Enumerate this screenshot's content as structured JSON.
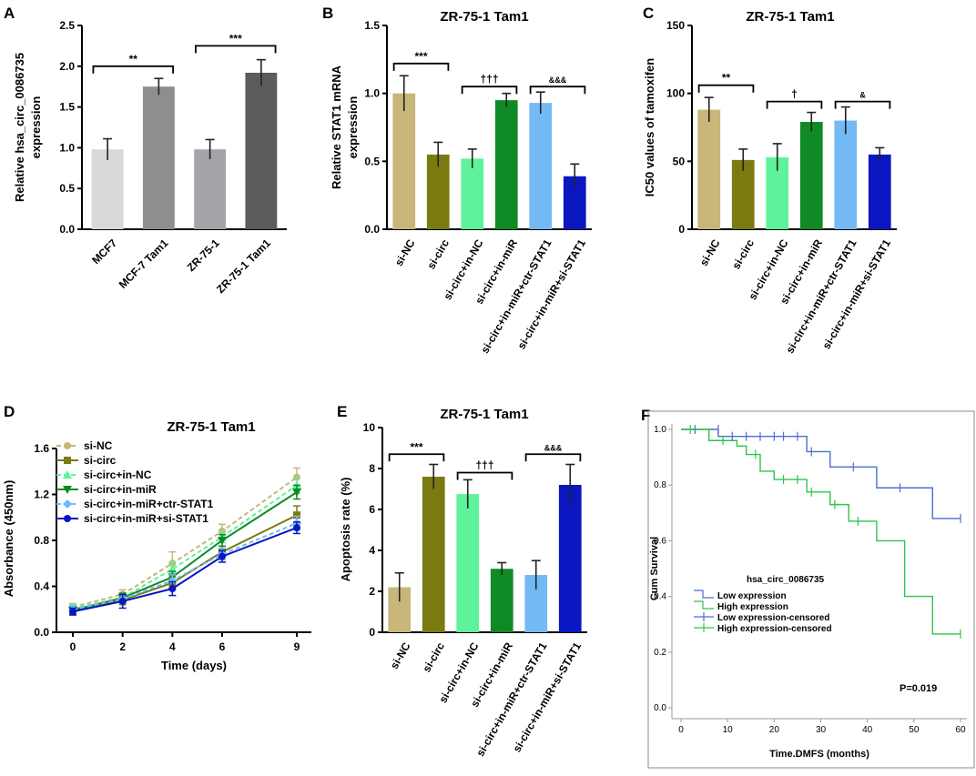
{
  "chart_data": [
    {
      "id": "A",
      "panel_label": "A",
      "type": "bar",
      "title": "",
      "ylabel": "Relative hsa_circ_0086735 expression",
      "ylim": [
        0,
        2.5
      ],
      "yticks": [
        "0.0",
        "0.5",
        "1.0",
        "1.5",
        "2.0",
        "2.5"
      ],
      "categories": [
        "MCF7",
        "MCF-7 Tam1",
        "ZR-75-1",
        "ZR-75-1 Tam1"
      ],
      "values": [
        0.98,
        1.75,
        0.98,
        1.92
      ],
      "errors": [
        0.13,
        0.1,
        0.12,
        0.16
      ],
      "colors": [
        "#d9d9d9",
        "#8e8e8e",
        "#a4a4aa",
        "#5c5c5c"
      ],
      "significance": [
        {
          "from": 0,
          "to": 1,
          "label": "**",
          "level": 2.0
        },
        {
          "from": 2,
          "to": 3,
          "label": "***",
          "level": 2.25
        }
      ]
    },
    {
      "id": "B",
      "panel_label": "B",
      "type": "bar",
      "title": "ZR-75-1 Tam1",
      "ylabel": "Relative STAT1 mRNA expression",
      "ylim": [
        0,
        1.5
      ],
      "yticks": [
        "0.0",
        "0.5",
        "1.0",
        "1.5"
      ],
      "categories": [
        "si-NC",
        "si-circ",
        "si-circ+in-NC",
        "si-circ+in-miR",
        "si-circ+in-miR+ctr-STAT1",
        "si-circ+in-miR+si-STAT1"
      ],
      "values": [
        1.0,
        0.55,
        0.52,
        0.95,
        0.93,
        0.39
      ],
      "errors": [
        0.13,
        0.09,
        0.07,
        0.05,
        0.08,
        0.09
      ],
      "colors": [
        "#c8b67a",
        "#7b7a10",
        "#5ef39a",
        "#0f8a25",
        "#73baf5",
        "#0a17c0"
      ],
      "significance": [
        {
          "from": 0,
          "to": 1,
          "label": "***",
          "level": 1.22
        },
        {
          "from": 2,
          "to": 3,
          "label": "†††",
          "level": 1.05
        },
        {
          "from": 4,
          "to": 5,
          "label": "&&&",
          "level": 1.05
        }
      ]
    },
    {
      "id": "C",
      "panel_label": "C",
      "type": "bar",
      "title": "ZR-75-1 Tam1",
      "ylabel": "IC50 values of tamoxifen",
      "ylim": [
        0,
        150
      ],
      "yticks": [
        "0",
        "50",
        "100",
        "150"
      ],
      "categories": [
        "si-NC",
        "si-circ",
        "si-circ+in-NC",
        "si-circ+in-miR",
        "si-circ+in-miR+ctr-STAT1",
        "si-circ+in-miR+si-STAT1"
      ],
      "values": [
        88,
        51,
        53,
        79,
        80,
        55
      ],
      "errors": [
        9,
        8,
        10,
        7,
        10,
        5
      ],
      "colors": [
        "#c8b67a",
        "#7b7a10",
        "#5ef39a",
        "#0f8a25",
        "#73baf5",
        "#0a17c0"
      ],
      "significance": [
        {
          "from": 0,
          "to": 1,
          "label": "**",
          "level": 106
        },
        {
          "from": 2,
          "to": 3,
          "label": "†",
          "level": 94
        },
        {
          "from": 4,
          "to": 5,
          "label": "&",
          "level": 94
        }
      ]
    },
    {
      "id": "D",
      "panel_label": "D",
      "type": "line",
      "title": "ZR-75-1 Tam1",
      "xlabel": "Time (days)",
      "ylabel": "Absorbance (450nm)",
      "x": [
        0,
        2,
        4,
        6,
        9
      ],
      "xticks": [
        "0",
        "2",
        "4",
        "6",
        "9"
      ],
      "ylim": [
        0,
        1.6
      ],
      "yticks": [
        "0.0",
        "0.4",
        "0.8",
        "1.2",
        "1.6"
      ],
      "series": [
        {
          "name": "si-NC",
          "values": [
            0.22,
            0.33,
            0.6,
            0.88,
            1.35
          ],
          "errors": [
            0.03,
            0.04,
            0.1,
            0.06,
            0.08
          ],
          "color": "#c8b67a",
          "dash": "5,3",
          "marker": "circle"
        },
        {
          "name": "si-circ",
          "values": [
            0.2,
            0.28,
            0.43,
            0.7,
            1.02
          ],
          "errors": [
            0.03,
            0.04,
            0.05,
            0.05,
            0.08
          ],
          "color": "#7b7a10",
          "dash": "",
          "marker": "square"
        },
        {
          "name": "si-circ+in-NC",
          "values": [
            0.21,
            0.3,
            0.55,
            0.83,
            1.28
          ],
          "errors": [
            0.03,
            0.04,
            0.06,
            0.05,
            0.07
          ],
          "color": "#5ef39a",
          "dash": "5,3",
          "marker": "triangle"
        },
        {
          "name": "si-circ+in-miR",
          "values": [
            0.19,
            0.3,
            0.48,
            0.8,
            1.22
          ],
          "errors": [
            0.03,
            0.04,
            0.05,
            0.05,
            0.06
          ],
          "color": "#0f8a25",
          "dash": "",
          "marker": "triangle-down"
        },
        {
          "name": "si-circ+in-miR+ctr-STAT1",
          "values": [
            0.2,
            0.29,
            0.45,
            0.68,
            0.95
          ],
          "errors": [
            0.03,
            0.04,
            0.05,
            0.05,
            0.06
          ],
          "color": "#73baf5",
          "dash": "5,3",
          "marker": "diamond"
        },
        {
          "name": "si-circ+in-miR+si-STAT1",
          "values": [
            0.18,
            0.27,
            0.38,
            0.66,
            0.91
          ],
          "errors": [
            0.03,
            0.06,
            0.06,
            0.05,
            0.05
          ],
          "color": "#0a17c0",
          "dash": "",
          "marker": "circle"
        }
      ],
      "legend": "top-left"
    },
    {
      "id": "E",
      "panel_label": "E",
      "type": "bar",
      "title": "ZR-75-1 Tam1",
      "ylabel": "Apoptosis rate (%)",
      "ylim": [
        0,
        10
      ],
      "yticks": [
        "0",
        "2",
        "4",
        "6",
        "8",
        "10"
      ],
      "categories": [
        "si-NC",
        "si-circ",
        "si-circ+in-NC",
        "si-circ+in-miR",
        "si-circ+in-miR+ctr-STAT1",
        "si-circ+in-miR+si-STAT1"
      ],
      "values": [
        2.2,
        7.6,
        6.75,
        3.1,
        2.8,
        7.2
      ],
      "errors": [
        0.7,
        0.6,
        0.7,
        0.3,
        0.7,
        1.0
      ],
      "colors": [
        "#c8b67a",
        "#7b7a10",
        "#5ef39a",
        "#0f8a25",
        "#73baf5",
        "#0a17c0"
      ],
      "significance": [
        {
          "from": 0,
          "to": 1,
          "label": "***",
          "level": 8.7
        },
        {
          "from": 2,
          "to": 3,
          "label": "†††",
          "level": 7.8
        },
        {
          "from": 4,
          "to": 5,
          "label": "&&&",
          "level": 8.7
        }
      ]
    },
    {
      "id": "F",
      "panel_label": "F",
      "type": "line",
      "title": "",
      "xlabel": "Time.DMFS (months)",
      "ylabel": "Cum Survival",
      "xlim": [
        0,
        60
      ],
      "xticks": [
        "0",
        "10",
        "20",
        "30",
        "40",
        "50",
        "60"
      ],
      "ylim": [
        0,
        1.0
      ],
      "yticks": [
        "0.0",
        "0.2",
        "0.4",
        "0.6",
        "0.8",
        "1.0"
      ],
      "legend_title": "hsa_circ_0086735",
      "annotation": "P=0.019",
      "series": [
        {
          "name": "Low expression",
          "color": "#4a6fd4",
          "steps": [
            [
              0,
              1.0
            ],
            [
              8,
              1.0
            ],
            [
              8,
              0.975
            ],
            [
              27,
              0.975
            ],
            [
              27,
              0.92
            ],
            [
              32,
              0.92
            ],
            [
              32,
              0.865
            ],
            [
              42,
              0.865
            ],
            [
              42,
              0.79
            ],
            [
              54,
              0.79
            ],
            [
              54,
              0.68
            ],
            [
              60,
              0.68
            ]
          ]
        },
        {
          "name": "High expression",
          "color": "#2fc44a",
          "steps": [
            [
              0,
              1.0
            ],
            [
              6,
              1.0
            ],
            [
              6,
              0.96
            ],
            [
              12,
              0.96
            ],
            [
              12,
              0.94
            ],
            [
              14,
              0.94
            ],
            [
              14,
              0.91
            ],
            [
              17,
              0.91
            ],
            [
              17,
              0.85
            ],
            [
              20,
              0.85
            ],
            [
              20,
              0.82
            ],
            [
              27,
              0.82
            ],
            [
              27,
              0.775
            ],
            [
              32,
              0.775
            ],
            [
              32,
              0.73
            ],
            [
              36,
              0.73
            ],
            [
              36,
              0.67
            ],
            [
              42,
              0.67
            ],
            [
              42,
              0.6
            ],
            [
              48,
              0.6
            ],
            [
              48,
              0.4
            ],
            [
              54,
              0.4
            ],
            [
              54,
              0.265
            ],
            [
              60,
              0.265
            ]
          ]
        },
        {
          "name": "Low expression-censored",
          "color": "#4a6fd4",
          "censored": [
            [
              3,
              1.0
            ],
            [
              8,
              1.0
            ],
            [
              11,
              0.975
            ],
            [
              14,
              0.975
            ],
            [
              17,
              0.975
            ],
            [
              20,
              0.975
            ],
            [
              22,
              0.975
            ],
            [
              25,
              0.975
            ],
            [
              28,
              0.92
            ],
            [
              37,
              0.865
            ],
            [
              47,
              0.79
            ],
            [
              60,
              0.68
            ]
          ]
        },
        {
          "name": "High expression-censored",
          "color": "#2fc44a",
          "censored": [
            [
              2,
              1.0
            ],
            [
              9,
              0.96
            ],
            [
              16,
              0.91
            ],
            [
              22,
              0.82
            ],
            [
              25,
              0.82
            ],
            [
              28,
              0.775
            ],
            [
              33,
              0.73
            ],
            [
              38,
              0.67
            ],
            [
              60,
              0.265
            ]
          ]
        }
      ]
    }
  ]
}
